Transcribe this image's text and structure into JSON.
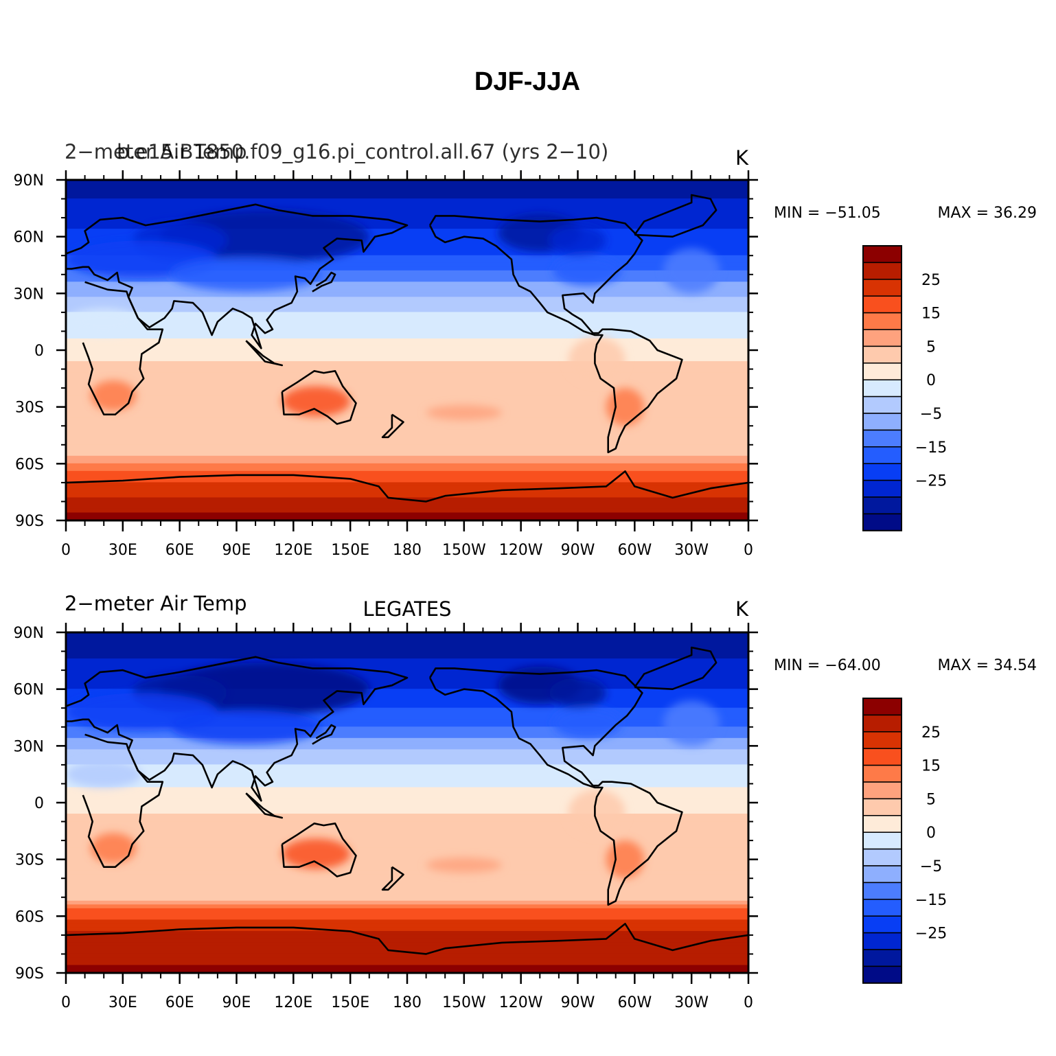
{
  "title": "DJF-JJA",
  "colorbar_levels": [
    35,
    30,
    25,
    20,
    15,
    10,
    5,
    2,
    0,
    -2,
    -5,
    -10,
    -15,
    -20,
    -25,
    -30,
    -35
  ],
  "colorbar_labels": [
    "25",
    "15",
    "5",
    "0",
    "−5",
    "−15",
    "−25"
  ],
  "colorbar_label_levels": [
    25,
    15,
    5,
    0,
    -5,
    -15,
    -25
  ],
  "palette": [
    "#8c0000",
    "#b71d00",
    "#d83303",
    "#f9501e",
    "#fe7a48",
    "#fea27e",
    "#fecaad",
    "#feebd9",
    "#d7eafe",
    "#b2cafe",
    "#8eaffe",
    "#4c7dfe",
    "#245dfe",
    "#083ef4",
    "#0026d1",
    "#00189e",
    "#000b87"
  ],
  "panels": [
    {
      "left_label_a": "2−meter Air Temp",
      "left_label_b": "b.e15.B1850.f09_g16.pi_control.all.67 (yrs 2−10)",
      "center_label": "",
      "units": "K",
      "min_text": "MIN = −51.05",
      "max_text": "MAX =   36.29",
      "min": -51.05,
      "max": 36.29
    },
    {
      "left_label_a": "2−meter Air Temp",
      "left_label_b": "",
      "center_label": "LEGATES",
      "units": "K",
      "min_text": "MIN = −64.00",
      "max_text": "MAX =   34.54",
      "min": -64.0,
      "max": 34.54
    }
  ],
  "lat_ticks": [
    "90N",
    "60N",
    "30N",
    "0",
    "30S",
    "60S",
    "90S"
  ],
  "lon_ticks": [
    "0",
    "30E",
    "60E",
    "90E",
    "120E",
    "150E",
    "180",
    "150W",
    "120W",
    "90W",
    "60W",
    "30W",
    "0"
  ],
  "chart_data": {
    "type": "heatmap",
    "title": "DJF-JJA",
    "xlabel": "",
    "ylabel": "",
    "xlim": [
      0,
      360
    ],
    "ylim": [
      -90,
      90
    ],
    "x_ticks": [
      "0",
      "30E",
      "60E",
      "90E",
      "120E",
      "150E",
      "180",
      "150W",
      "120W",
      "90W",
      "60W",
      "30W",
      "0"
    ],
    "y_ticks": [
      "90N",
      "60N",
      "30N",
      "0",
      "30S",
      "60S",
      "90S"
    ],
    "units": "K",
    "contour_levels": [
      -35,
      -30,
      -25,
      -20,
      -15,
      -10,
      -5,
      -2,
      0,
      2,
      5,
      10,
      15,
      20,
      25,
      30,
      35
    ],
    "panels": [
      {
        "name": "b.e15.B1850.f09_g16.pi_control.all.67 (yrs 2−10)",
        "variable": "2−meter Air Temp",
        "min": -51.05,
        "max": 36.29
      },
      {
        "name": "LEGATES",
        "variable": "2−meter Air Temp",
        "min": -64.0,
        "max": 34.54
      }
    ]
  }
}
